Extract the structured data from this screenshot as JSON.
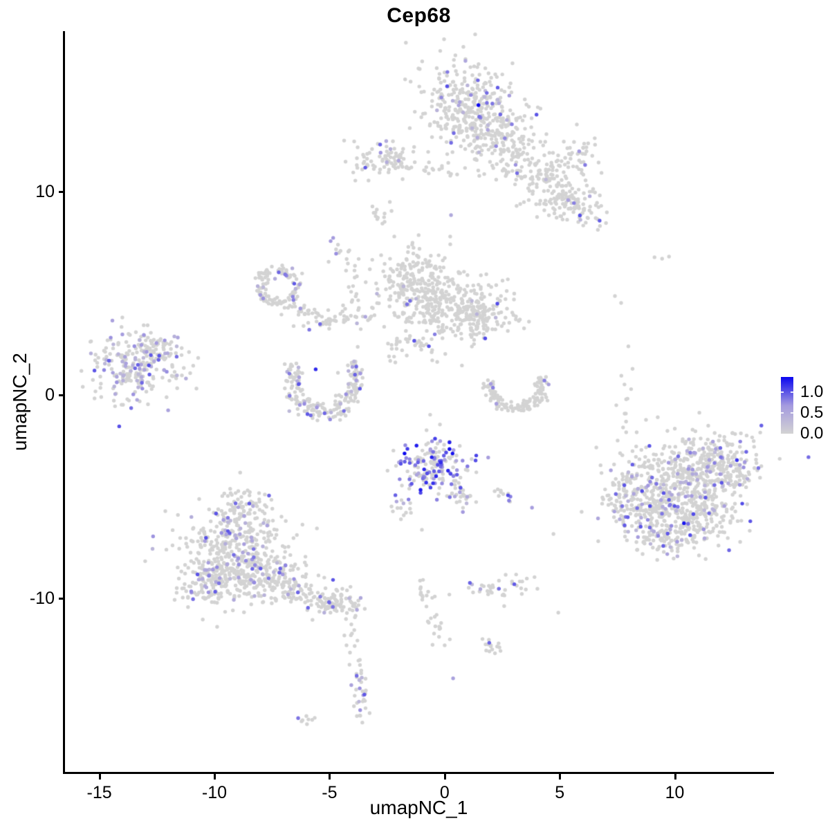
{
  "chart_data": {
    "type": "scatter",
    "title": "Cep68",
    "xlabel": "umapNC_1",
    "ylabel": "umapNC_2",
    "xlim": [
      -16.52,
      14.28
    ],
    "ylim": [
      -18.6,
      17.9
    ],
    "xticks": [
      -15,
      -10,
      -5,
      0,
      5,
      10
    ],
    "yticks": [
      10,
      0,
      -10
    ],
    "grid": false,
    "legend": {
      "position": "right",
      "max": 1.37,
      "ticks": [
        1.0,
        0.5,
        0.0
      ]
    },
    "colors": {
      "low": "#D3D3D3",
      "mid": "#A49ADF",
      "high": "#0A06F0",
      "axis": "#000000",
      "background": "#FFFFFF"
    },
    "point_radius": 2.7,
    "seed": 42,
    "clusters": [
      {
        "name": "top-main",
        "shape": "gauss",
        "x": 0.88,
        "y": 14.3,
        "sx": 0.9,
        "sy": 1.12,
        "n": 280,
        "frac": 0.1
      },
      {
        "name": "top-main-right",
        "shape": "gauss",
        "x": 2.27,
        "y": 13.14,
        "sx": 0.9,
        "sy": 1.0,
        "n": 150,
        "frac": 0.06
      },
      {
        "name": "top-arm",
        "shape": "gauss",
        "x": 3.77,
        "y": 11.27,
        "sx": 1.5,
        "sy": 0.5,
        "rot": 38,
        "n": 160,
        "frac": 0.02
      },
      {
        "name": "top-arm-blob",
        "shape": "gauss",
        "x": 5.2,
        "y": 9.4,
        "sx": 1.0,
        "sy": 0.5,
        "rot": 20,
        "n": 110,
        "frac": 0.05
      },
      {
        "name": "top-ne-lobe",
        "shape": "gauss",
        "x": 5.87,
        "y": 11.78,
        "sx": 0.55,
        "sy": 0.5,
        "n": 45,
        "frac": 0.05
      },
      {
        "name": "top-left-arm",
        "shape": "gauss",
        "x": -2.54,
        "y": 11.57,
        "sx": 0.85,
        "sy": 0.42,
        "n": 80,
        "frac": 0.07
      },
      {
        "name": "top-chain",
        "shape": "gauss",
        "x": -0.74,
        "y": 11.23,
        "sx": 1.1,
        "sy": 0.28,
        "rot": 10,
        "n": 30,
        "frac": 0.03
      },
      {
        "name": "top-left-piece",
        "shape": "gauss",
        "x": -2.81,
        "y": 8.72,
        "sx": 0.22,
        "sy": 0.38,
        "n": 12,
        "frac": 0
      },
      {
        "name": "small-purple-blob",
        "shape": "gauss",
        "x": -4.59,
        "y": 7.22,
        "sx": 0.28,
        "sy": 0.25,
        "n": 10,
        "frac": 0.25,
        "vmin": 0.5
      },
      {
        "name": "strand-mid-upper",
        "shape": "gauss",
        "x": -4.1,
        "y": 5.83,
        "sx": 0.18,
        "sy": 0.75,
        "n": 12,
        "frac": 0
      },
      {
        "name": "ring-cluster",
        "shape": "arc",
        "x": -7.26,
        "y": 5.35,
        "rx": 0.8,
        "ry": 0.8,
        "rw": 0.16,
        "a0": 0,
        "a1": 360,
        "n": 115,
        "frac": 0.12
      },
      {
        "name": "ring-tail",
        "shape": "gauss",
        "x": -6.21,
        "y": 4.06,
        "sx": 0.5,
        "sy": 0.3,
        "rot": 30,
        "n": 30,
        "frac": 0.07
      },
      {
        "name": "bridge-1",
        "shape": "gauss",
        "x": -5.19,
        "y": 3.62,
        "sx": 0.45,
        "sy": 0.28,
        "n": 22,
        "frac": 0.06
      },
      {
        "name": "bridge-2",
        "shape": "gauss",
        "x": -3.8,
        "y": 4.06,
        "sx": 0.65,
        "sy": 0.3,
        "n": 30,
        "frac": 0.07
      },
      {
        "name": "central-1",
        "shape": "gauss",
        "x": -1.1,
        "y": 5.11,
        "sx": 0.9,
        "sy": 1.0,
        "n": 210,
        "frac": 0.015
      },
      {
        "name": "central-2",
        "shape": "gauss",
        "x": 0.55,
        "y": 4.26,
        "sx": 1.0,
        "sy": 0.85,
        "n": 180,
        "frac": 0.02
      },
      {
        "name": "central-3",
        "shape": "gauss",
        "x": 1.9,
        "y": 3.92,
        "sx": 0.65,
        "sy": 0.6,
        "n": 100,
        "frac": 0.035
      },
      {
        "name": "central-4",
        "shape": "gauss",
        "x": -1.7,
        "y": 6.03,
        "sx": 0.55,
        "sy": 0.5,
        "n": 60,
        "frac": 0.02
      },
      {
        "name": "central-trail",
        "shape": "gauss",
        "x": -1.64,
        "y": 2.53,
        "sx": 0.8,
        "sy": 0.6,
        "n": 38,
        "frac": 0.02
      },
      {
        "name": "crescent-left",
        "shape": "arc",
        "x": -5.25,
        "y": 0.62,
        "rx": 1.42,
        "ry": 1.45,
        "rw": 0.16,
        "a0": -40,
        "a1": 220,
        "n": 210,
        "frac": 0.15
      },
      {
        "name": "crescent-right",
        "shape": "arc",
        "x": 3.11,
        "y": 0.38,
        "rx": 1.12,
        "ry": 1.0,
        "rw": 0.14,
        "a0": -30,
        "a1": 200,
        "n": 130,
        "frac": 0.035
      },
      {
        "name": "farleft-main",
        "shape": "gauss",
        "x": -13.72,
        "y": 1.37,
        "sx": 0.9,
        "sy": 0.85,
        "n": 210,
        "frac": 0.28
      },
      {
        "name": "farleft-top",
        "shape": "gauss",
        "x": -12.61,
        "y": 2.22,
        "sx": 0.55,
        "sy": 0.45,
        "n": 60,
        "frac": 0.18
      },
      {
        "name": "farleft-right",
        "shape": "gauss",
        "x": -11.59,
        "y": 0.76,
        "sx": 0.5,
        "sy": 0.5,
        "n": 18,
        "frac": 0.05
      },
      {
        "name": "right-main",
        "shape": "gauss",
        "x": 10.2,
        "y": -4.38,
        "sx": 1.35,
        "sy": 1.1,
        "n": 460,
        "frac": 0.13
      },
      {
        "name": "right-ne",
        "shape": "gauss",
        "x": 11.82,
        "y": -3.29,
        "sx": 0.9,
        "sy": 0.75,
        "n": 200,
        "frac": 0.15
      },
      {
        "name": "right-sw",
        "shape": "gauss",
        "x": 8.97,
        "y": -5.77,
        "sx": 0.9,
        "sy": 0.75,
        "n": 150,
        "frac": 0.15
      },
      {
        "name": "right-se",
        "shape": "gauss",
        "x": 11.07,
        "y": -6.18,
        "sx": 0.85,
        "sy": 0.6,
        "n": 120,
        "frac": 0.1
      },
      {
        "name": "right-west-arm",
        "shape": "gauss",
        "x": 7.76,
        "y": -5.09,
        "sx": 0.4,
        "sy": 0.55,
        "n": 40,
        "frac": 0.2
      },
      {
        "name": "right-bottom",
        "shape": "gauss",
        "x": 9.72,
        "y": -7.3,
        "sx": 0.75,
        "sy": 0.38,
        "n": 60,
        "frac": 0.1
      },
      {
        "name": "mid-hi-expr",
        "shape": "gauss",
        "x": -0.5,
        "y": -3.46,
        "sx": 0.85,
        "sy": 0.68,
        "n": 175,
        "frac": 0.45,
        "vmin": 0.45,
        "vmax": 1.37,
        "pw": 0.9
      },
      {
        "name": "mid-se-trail",
        "shape": "gauss",
        "x": 0.7,
        "y": -4.92,
        "sx": 0.5,
        "sy": 0.3,
        "rot": 40,
        "n": 25,
        "frac": 0.2
      },
      {
        "name": "mid-small-blob",
        "shape": "gauss",
        "x": 2.57,
        "y": -4.96,
        "sx": 0.3,
        "sy": 0.2,
        "n": 12,
        "frac": 0.3
      },
      {
        "name": "mid-left-strand",
        "shape": "gauss",
        "x": -1.82,
        "y": -5.77,
        "sx": 0.28,
        "sy": 0.6,
        "rot": -20,
        "n": 15,
        "frac": 0.25
      },
      {
        "name": "botleft-top",
        "shape": "gauss",
        "x": -8.73,
        "y": -5.36,
        "sx": 0.45,
        "sy": 0.42,
        "n": 50,
        "frac": 0.1
      },
      {
        "name": "botleft-main",
        "shape": "gauss",
        "x": -9.12,
        "y": -7.47,
        "sx": 1.2,
        "sy": 1.1,
        "n": 390,
        "frac": 0.13
      },
      {
        "name": "botleft-sw",
        "shape": "gauss",
        "x": -9.97,
        "y": -9.24,
        "sx": 0.85,
        "sy": 0.6,
        "n": 150,
        "frac": 0.13
      },
      {
        "name": "botleft-se",
        "shape": "gauss",
        "x": -7.71,
        "y": -9.0,
        "sx": 0.8,
        "sy": 0.55,
        "n": 130,
        "frac": 0.1
      },
      {
        "name": "botleft-tail",
        "shape": "gauss",
        "x": -6.06,
        "y": -9.75,
        "sx": 0.8,
        "sy": 0.38,
        "rot": 25,
        "n": 90,
        "frac": 0.1
      },
      {
        "name": "botleft-tail-end",
        "shape": "gauss",
        "x": -4.53,
        "y": -10.26,
        "sx": 0.45,
        "sy": 0.32,
        "n": 60,
        "frac": 0.1
      },
      {
        "name": "tail-strand",
        "shape": "gauss",
        "x": -4.08,
        "y": -11.96,
        "sx": 0.14,
        "sy": 0.55,
        "n": 12,
        "frac": 0
      },
      {
        "name": "tail-blob",
        "shape": "gauss",
        "x": -3.65,
        "y": -14.51,
        "sx": 0.2,
        "sy": 0.8,
        "n": 35,
        "frac": 0.25
      },
      {
        "name": "tail-tip",
        "shape": "gauss",
        "x": -6.06,
        "y": -16.01,
        "sx": 0.3,
        "sy": 0.15,
        "n": 8,
        "frac": 0.15
      },
      {
        "name": "botmid-blob",
        "shape": "gauss",
        "x": 2.24,
        "y": -9.55,
        "sx": 0.75,
        "sy": 0.3,
        "n": 40,
        "frac": 0.12
      },
      {
        "name": "snake-upper",
        "shape": "gauss",
        "x": -0.92,
        "y": -9.55,
        "sx": 0.15,
        "sy": 0.5,
        "n": 14,
        "frac": 0
      },
      {
        "name": "snake-lower",
        "shape": "gauss",
        "x": -0.35,
        "y": -11.38,
        "sx": 0.18,
        "sy": 0.5,
        "rot": -15,
        "n": 16,
        "frac": 0
      },
      {
        "name": "botmid-small",
        "shape": "gauss",
        "x": 2.15,
        "y": -12.4,
        "sx": 0.35,
        "sy": 0.25,
        "n": 15,
        "frac": 0.07
      },
      {
        "name": "right-strand",
        "shape": "gauss",
        "x": 7.89,
        "y": 0.11,
        "sx": 0.18,
        "sy": 0.8,
        "n": 12,
        "frac": 0
      }
    ],
    "singles": [
      {
        "x": 1.47,
        "y": 14.26,
        "v": 1.37
      },
      {
        "x": -5.6,
        "y": 1.27,
        "v": 1.2
      },
      {
        "x": 10.4,
        "y": -6.3,
        "v": 1.3
      },
      {
        "x": 12.7,
        "y": -3.2,
        "v": 1.15
      },
      {
        "x": 0.37,
        "y": -13.93,
        "v": 0.6
      },
      {
        "x": -11.59,
        "y": 2.83,
        "v": 0.55
      },
      {
        "x": 0.28,
        "y": 8.85,
        "v": 0.5
      },
      {
        "x": 4.73,
        "y": -6.83,
        "v": 0
      },
      {
        "x": 4.94,
        "y": -10.7,
        "v": 0
      },
      {
        "x": 7.89,
        "y": -1.83,
        "v": 0
      },
      {
        "x": 9.12,
        "y": 6.78,
        "v": 0
      },
      {
        "x": 9.45,
        "y": 6.71,
        "v": 0
      },
      {
        "x": 9.75,
        "y": 6.81,
        "v": 0
      },
      {
        "x": 7.4,
        "y": 4.87,
        "v": 0
      },
      {
        "x": 7.67,
        "y": 4.53,
        "v": 0
      },
      {
        "x": -10.78,
        "y": 0.32,
        "v": 0
      },
      {
        "x": -3.08,
        "y": 8.96,
        "v": 0
      }
    ]
  }
}
